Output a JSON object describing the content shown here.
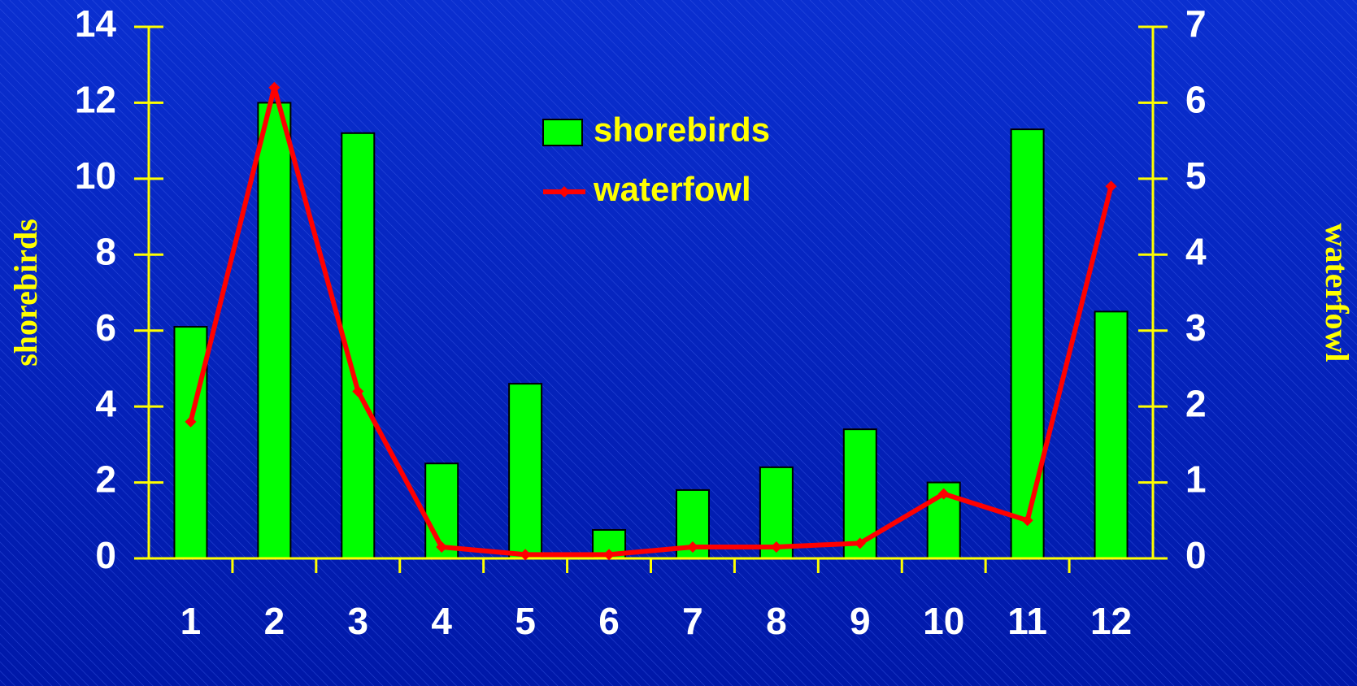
{
  "chart_data": {
    "type": "bar",
    "categories": [
      "1",
      "2",
      "3",
      "4",
      "5",
      "6",
      "7",
      "8",
      "9",
      "10",
      "11",
      "12"
    ],
    "series": [
      {
        "name": "shorebirds",
        "type": "bar",
        "color": "#00ff00",
        "values": [
          6.1,
          12.0,
          11.2,
          2.5,
          4.6,
          0.75,
          1.8,
          2.4,
          3.4,
          2.0,
          11.3,
          6.5
        ]
      },
      {
        "name": "waterfowl",
        "type": "line",
        "axis": "y2",
        "color": "#ff0000",
        "values": [
          1.8,
          6.2,
          2.2,
          0.15,
          0.05,
          0.05,
          0.15,
          0.15,
          0.2,
          0.85,
          0.5,
          4.9
        ]
      }
    ],
    "ylabel": "shorebirds",
    "y2label": "waterfowl",
    "ylim": [
      0,
      14
    ],
    "yticks": [
      0,
      2,
      4,
      6,
      8,
      10,
      12,
      14
    ],
    "y2lim": [
      0,
      7
    ],
    "y2ticks": [
      0,
      1,
      2,
      3,
      4,
      5,
      6,
      7
    ],
    "legend": "top-center",
    "axis_color": "#ffff00"
  }
}
